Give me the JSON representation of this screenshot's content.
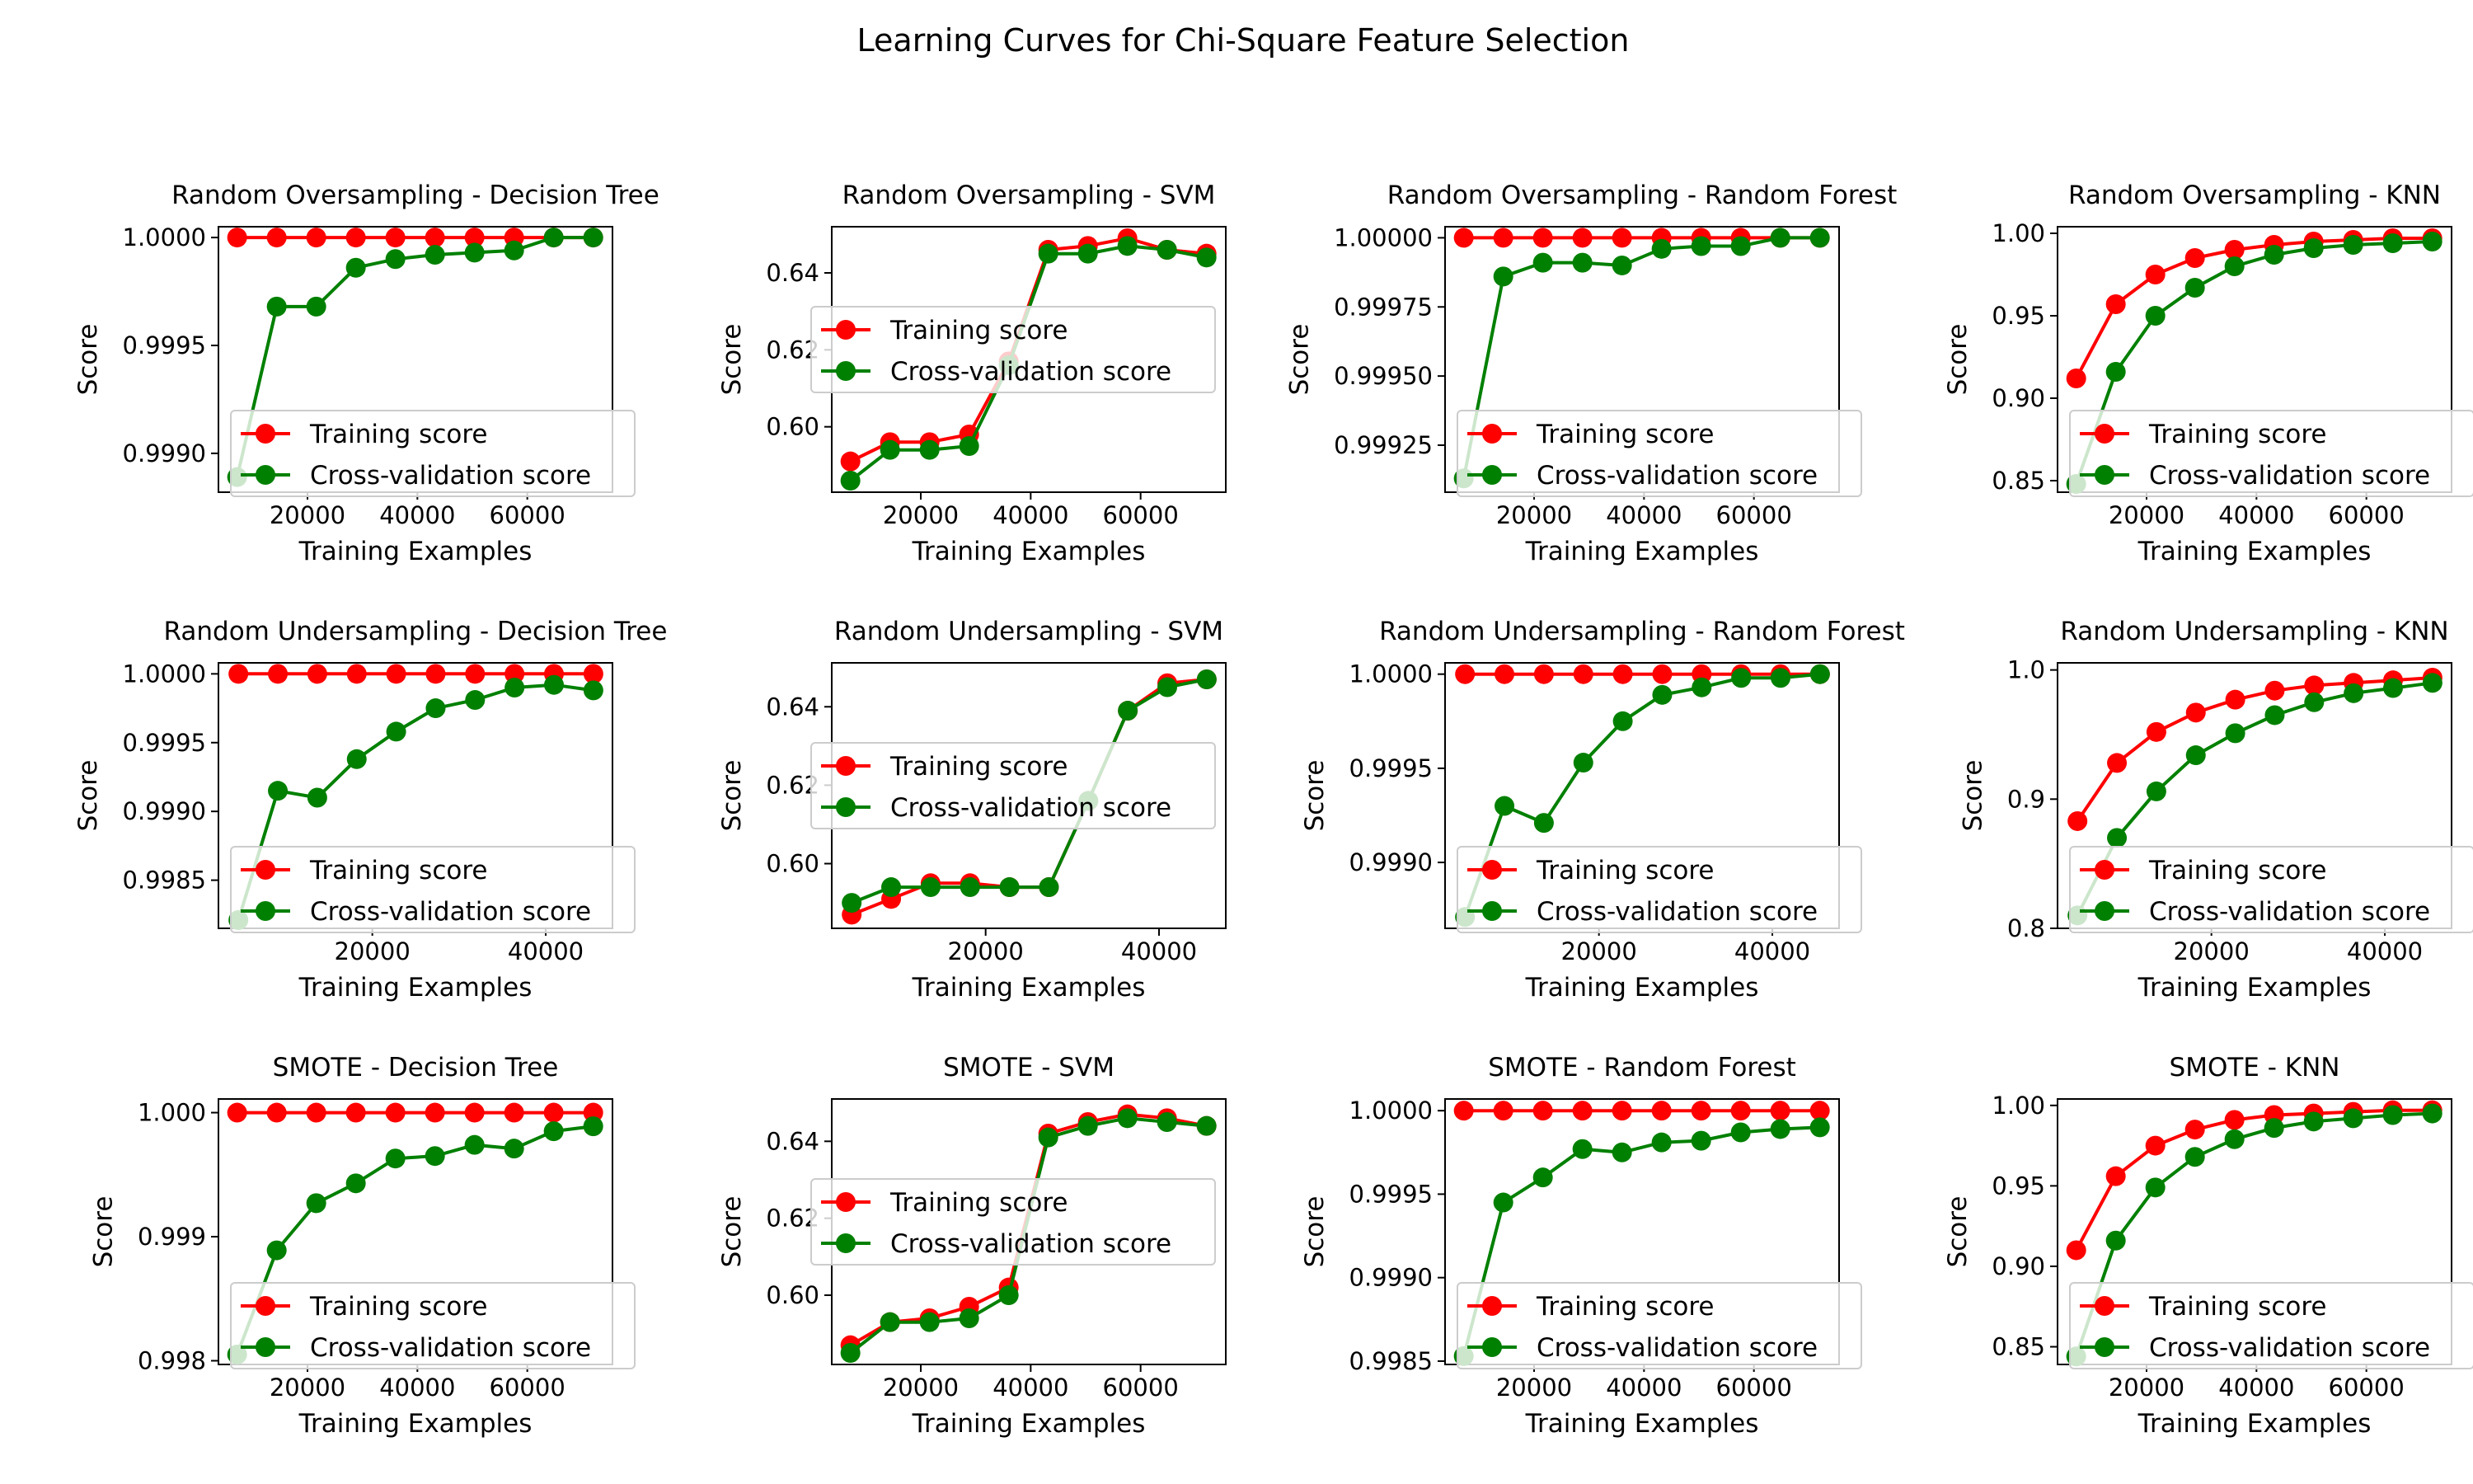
{
  "figure": {
    "title": "Learning Curves for Chi-Square Feature Selection",
    "colors": {
      "training": "#ff0000",
      "cv": "#008000"
    }
  },
  "chart_data": [
    {
      "type": "line",
      "title": "Random Oversampling - Decision Tree",
      "xlabel": "Training Examples",
      "ylabel": "Score",
      "xlim": [
        3800,
        75500
      ],
      "ylim": [
        0.99882,
        1.00005
      ],
      "xticks": [
        20000,
        40000,
        60000
      ],
      "xtick_labels": [
        "20000",
        "40000",
        "60000"
      ],
      "yticks": [
        0.999,
        0.9995,
        1.0
      ],
      "ytick_labels": [
        "0.9990",
        "0.9995",
        "1.0000"
      ],
      "legend": "lower right",
      "x": [
        7200,
        14400,
        21600,
        28800,
        36000,
        43200,
        50400,
        57600,
        64800,
        72000
      ],
      "series": [
        {
          "name": "Training score",
          "values": [
            1.0,
            1.0,
            1.0,
            1.0,
            1.0,
            1.0,
            1.0,
            1.0,
            1.0,
            1.0
          ]
        },
        {
          "name": "Cross-validation score",
          "values": [
            0.99889,
            0.99968,
            0.99968,
            0.99986,
            0.9999,
            0.99992,
            0.99993,
            0.99994,
            1.0,
            1.0
          ]
        }
      ]
    },
    {
      "type": "line",
      "title": "Random Oversampling - SVM",
      "xlabel": "Training Examples",
      "ylabel": "Score",
      "xlim": [
        3800,
        75500
      ],
      "ylim": [
        0.583,
        0.652
      ],
      "xticks": [
        20000,
        40000,
        60000
      ],
      "xtick_labels": [
        "20000",
        "40000",
        "60000"
      ],
      "yticks": [
        0.6,
        0.62,
        0.64
      ],
      "ytick_labels": [
        "0.60",
        "0.62",
        "0.64"
      ],
      "legend": "center left",
      "x": [
        7200,
        14400,
        21600,
        28800,
        36000,
        43200,
        50400,
        57600,
        64800,
        72000
      ],
      "series": [
        {
          "name": "Training score",
          "values": [
            0.591,
            0.596,
            0.596,
            0.598,
            0.617,
            0.646,
            0.647,
            0.649,
            0.646,
            0.645
          ]
        },
        {
          "name": "Cross-validation score",
          "values": [
            0.586,
            0.594,
            0.594,
            0.595,
            0.616,
            0.645,
            0.645,
            0.647,
            0.646,
            0.644
          ]
        }
      ]
    },
    {
      "type": "line",
      "title": "Random Oversampling - Random Forest",
      "xlabel": "Training Examples",
      "ylabel": "Score",
      "xlim": [
        3800,
        75500
      ],
      "ylim": [
        0.99908,
        1.00004
      ],
      "xticks": [
        20000,
        40000,
        60000
      ],
      "xtick_labels": [
        "20000",
        "40000",
        "60000"
      ],
      "yticks": [
        0.99925,
        0.9995,
        0.99975,
        1.0
      ],
      "ytick_labels": [
        "0.99925",
        "0.99950",
        "0.99975",
        "1.00000"
      ],
      "legend": "lower right",
      "x": [
        7200,
        14400,
        21600,
        28800,
        36000,
        43200,
        50400,
        57600,
        64800,
        72000
      ],
      "series": [
        {
          "name": "Training score",
          "values": [
            1.0,
            1.0,
            1.0,
            1.0,
            1.0,
            1.0,
            1.0,
            1.0,
            1.0,
            1.0
          ]
        },
        {
          "name": "Cross-validation score",
          "values": [
            0.99913,
            0.99986,
            0.99991,
            0.99991,
            0.9999,
            0.99996,
            0.99997,
            0.99997,
            1.0,
            1.0
          ]
        }
      ]
    },
    {
      "type": "line",
      "title": "Random Oversampling - KNN",
      "xlabel": "Training Examples",
      "ylabel": "Score",
      "xlim": [
        3800,
        75500
      ],
      "ylim": [
        0.843,
        1.004
      ],
      "xticks": [
        20000,
        40000,
        60000
      ],
      "xtick_labels": [
        "20000",
        "40000",
        "60000"
      ],
      "yticks": [
        0.85,
        0.9,
        0.95,
        1.0
      ],
      "ytick_labels": [
        "0.85",
        "0.90",
        "0.95",
        "1.00"
      ],
      "legend": "lower right",
      "x": [
        7200,
        14400,
        21600,
        28800,
        36000,
        43200,
        50400,
        57600,
        64800,
        72000
      ],
      "series": [
        {
          "name": "Training score",
          "values": [
            0.912,
            0.957,
            0.975,
            0.985,
            0.99,
            0.993,
            0.995,
            0.996,
            0.997,
            0.997
          ]
        },
        {
          "name": "Cross-validation score",
          "values": [
            0.848,
            0.916,
            0.95,
            0.967,
            0.98,
            0.987,
            0.991,
            0.993,
            0.994,
            0.995
          ]
        }
      ]
    },
    {
      "type": "line",
      "title": "Random Undersampling - Decision Tree",
      "xlabel": "Training Examples",
      "ylabel": "Score",
      "xlim": [
        2250,
        47700
      ],
      "ylim": [
        0.99815,
        1.00008
      ],
      "xticks": [
        20000,
        40000
      ],
      "xtick_labels": [
        "20000",
        "40000"
      ],
      "yticks": [
        0.9985,
        0.999,
        0.9995,
        1.0
      ],
      "ytick_labels": [
        "0.9985",
        "0.9990",
        "0.9995",
        "1.0000"
      ],
      "legend": "lower right",
      "x": [
        4550,
        9100,
        13650,
        18200,
        22750,
        27300,
        31850,
        36400,
        40950,
        45500
      ],
      "series": [
        {
          "name": "Training score",
          "values": [
            1.0,
            1.0,
            1.0,
            1.0,
            1.0,
            1.0,
            1.0,
            1.0,
            1.0,
            1.0
          ]
        },
        {
          "name": "Cross-validation score",
          "values": [
            0.99821,
            0.99915,
            0.9991,
            0.99938,
            0.99958,
            0.99975,
            0.99981,
            0.9999,
            0.99992,
            0.99988
          ]
        }
      ]
    },
    {
      "type": "line",
      "title": "Random Undersampling - SVM",
      "xlabel": "Training Examples",
      "ylabel": "Score",
      "xlim": [
        2250,
        47700
      ],
      "ylim": [
        0.5835,
        0.6512
      ],
      "xticks": [
        20000,
        40000
      ],
      "xtick_labels": [
        "20000",
        "40000"
      ],
      "yticks": [
        0.6,
        0.62,
        0.64
      ],
      "ytick_labels": [
        "0.60",
        "0.62",
        "0.64"
      ],
      "legend": "center left",
      "x": [
        4550,
        9100,
        13650,
        18200,
        22750,
        27300,
        31850,
        36400,
        40950,
        45500
      ],
      "series": [
        {
          "name": "Training score",
          "values": [
            0.587,
            0.591,
            0.595,
            0.595,
            0.594,
            0.594,
            0.616,
            0.639,
            0.646,
            0.647
          ]
        },
        {
          "name": "Cross-validation score",
          "values": [
            0.59,
            0.594,
            0.594,
            0.594,
            0.594,
            0.594,
            0.616,
            0.639,
            0.645,
            0.647
          ]
        }
      ]
    },
    {
      "type": "line",
      "title": "Random Undersampling - Random Forest",
      "xlabel": "Training Examples",
      "ylabel": "Score",
      "xlim": [
        2250,
        47700
      ],
      "ylim": [
        0.99865,
        1.00006
      ],
      "xticks": [
        20000,
        40000
      ],
      "xtick_labels": [
        "20000",
        "40000"
      ],
      "yticks": [
        0.999,
        0.9995,
        1.0
      ],
      "ytick_labels": [
        "0.9990",
        "0.9995",
        "1.0000"
      ],
      "legend": "lower right",
      "x": [
        4550,
        9100,
        13650,
        18200,
        22750,
        27300,
        31850,
        36400,
        40950,
        45500
      ],
      "series": [
        {
          "name": "Training score",
          "values": [
            1.0,
            1.0,
            1.0,
            1.0,
            1.0,
            1.0,
            1.0,
            1.0,
            1.0,
            1.0
          ]
        },
        {
          "name": "Cross-validation score",
          "values": [
            0.99871,
            0.9993,
            0.99921,
            0.99953,
            0.99975,
            0.99989,
            0.99993,
            0.99998,
            0.99998,
            1.0
          ]
        }
      ]
    },
    {
      "type": "line",
      "title": "Random Undersampling - KNN",
      "xlabel": "Training Examples",
      "ylabel": "Score",
      "xlim": [
        2250,
        47700
      ],
      "ylim": [
        0.8,
        1.0055
      ],
      "xticks": [
        20000,
        40000
      ],
      "xtick_labels": [
        "20000",
        "40000"
      ],
      "yticks": [
        0.8,
        0.9,
        1.0
      ],
      "ytick_labels": [
        "0.8",
        "0.9",
        "1.0"
      ],
      "legend": "lower right",
      "x": [
        4550,
        9100,
        13650,
        18200,
        22750,
        27300,
        31850,
        36400,
        40950,
        45500
      ],
      "series": [
        {
          "name": "Training score",
          "values": [
            0.883,
            0.928,
            0.952,
            0.967,
            0.977,
            0.984,
            0.988,
            0.99,
            0.992,
            0.994
          ]
        },
        {
          "name": "Cross-validation score",
          "values": [
            0.81,
            0.87,
            0.906,
            0.934,
            0.951,
            0.965,
            0.975,
            0.982,
            0.986,
            0.99
          ]
        }
      ]
    },
    {
      "type": "line",
      "title": "SMOTE - Decision Tree",
      "xlabel": "Training Examples",
      "ylabel": "Score",
      "xlim": [
        3800,
        75500
      ],
      "ylim": [
        0.99797,
        1.00011
      ],
      "xticks": [
        20000,
        40000,
        60000
      ],
      "xtick_labels": [
        "20000",
        "40000",
        "60000"
      ],
      "yticks": [
        0.998,
        0.999,
        1.0
      ],
      "ytick_labels": [
        "0.998",
        "0.999",
        "1.000"
      ],
      "legend": "lower right",
      "x": [
        7200,
        14400,
        21600,
        28800,
        36000,
        43200,
        50400,
        57600,
        64800,
        72000
      ],
      "series": [
        {
          "name": "Training score",
          "values": [
            1.0,
            1.0,
            1.0,
            1.0,
            1.0,
            1.0,
            1.0,
            1.0,
            1.0,
            1.0
          ]
        },
        {
          "name": "Cross-validation score",
          "values": [
            0.99805,
            0.99889,
            0.99927,
            0.99943,
            0.99963,
            0.99965,
            0.99974,
            0.99971,
            0.99985,
            0.99989
          ]
        }
      ]
    },
    {
      "type": "line",
      "title": "SMOTE - SVM",
      "xlabel": "Training Examples",
      "ylabel": "Score",
      "xlim": [
        3800,
        75500
      ],
      "ylim": [
        0.582,
        0.651
      ],
      "xticks": [
        20000,
        40000,
        60000
      ],
      "xtick_labels": [
        "20000",
        "40000",
        "60000"
      ],
      "yticks": [
        0.6,
        0.62,
        0.64
      ],
      "ytick_labels": [
        "0.60",
        "0.62",
        "0.64"
      ],
      "legend": "center left",
      "x": [
        7200,
        14400,
        21600,
        28800,
        36000,
        43200,
        50400,
        57600,
        64800,
        72000
      ],
      "series": [
        {
          "name": "Training score",
          "values": [
            0.587,
            0.593,
            0.594,
            0.597,
            0.602,
            0.642,
            0.645,
            0.647,
            0.646,
            0.644
          ]
        },
        {
          "name": "Cross-validation score",
          "values": [
            0.585,
            0.593,
            0.593,
            0.594,
            0.6,
            0.641,
            0.644,
            0.646,
            0.645,
            0.644
          ]
        }
      ]
    },
    {
      "type": "line",
      "title": "SMOTE - Random Forest",
      "xlabel": "Training Examples",
      "ylabel": "Score",
      "xlim": [
        3800,
        75500
      ],
      "ylim": [
        0.99848,
        1.00007
      ],
      "xticks": [
        20000,
        40000,
        60000
      ],
      "xtick_labels": [
        "20000",
        "40000",
        "60000"
      ],
      "yticks": [
        0.9985,
        0.999,
        0.9995,
        1.0
      ],
      "ytick_labels": [
        "0.9985",
        "0.9990",
        "0.9995",
        "1.0000"
      ],
      "legend": "lower right",
      "x": [
        7200,
        14400,
        21600,
        28800,
        36000,
        43200,
        50400,
        57600,
        64800,
        72000
      ],
      "series": [
        {
          "name": "Training score",
          "values": [
            1.0,
            1.0,
            1.0,
            1.0,
            1.0,
            1.0,
            1.0,
            1.0,
            1.0,
            1.0
          ]
        },
        {
          "name": "Cross-validation score",
          "values": [
            0.99853,
            0.99945,
            0.9996,
            0.99977,
            0.99975,
            0.99981,
            0.99982,
            0.99987,
            0.99989,
            0.9999
          ]
        }
      ]
    },
    {
      "type": "line",
      "title": "SMOTE - KNN",
      "xlabel": "Training Examples",
      "ylabel": "Score",
      "xlim": [
        3800,
        75500
      ],
      "ylim": [
        0.839,
        1.004
      ],
      "xticks": [
        20000,
        40000,
        60000
      ],
      "xtick_labels": [
        "20000",
        "40000",
        "60000"
      ],
      "yticks": [
        0.85,
        0.9,
        0.95,
        1.0
      ],
      "ytick_labels": [
        "0.85",
        "0.90",
        "0.95",
        "1.00"
      ],
      "legend": "lower right",
      "x": [
        7200,
        14400,
        21600,
        28800,
        36000,
        43200,
        50400,
        57600,
        64800,
        72000
      ],
      "series": [
        {
          "name": "Training score",
          "values": [
            0.91,
            0.956,
            0.975,
            0.985,
            0.991,
            0.994,
            0.995,
            0.996,
            0.997,
            0.997
          ]
        },
        {
          "name": "Cross-validation score",
          "values": [
            0.844,
            0.916,
            0.949,
            0.968,
            0.979,
            0.986,
            0.99,
            0.992,
            0.994,
            0.995
          ]
        }
      ]
    }
  ]
}
